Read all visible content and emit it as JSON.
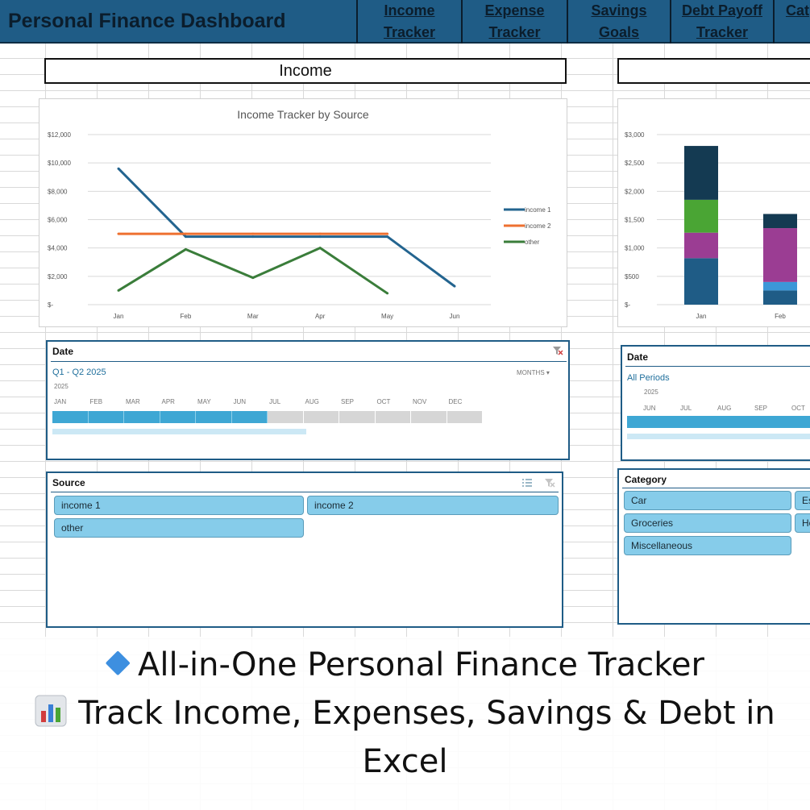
{
  "header": {
    "title": "Personal Finance Dashboard",
    "nav": [
      {
        "label": "Income\nTracker"
      },
      {
        "label": "Expense\nTracker"
      },
      {
        "label": "Savings\nGoals"
      },
      {
        "label": "Debt Payoff\nTracker"
      },
      {
        "label": "Cat"
      }
    ]
  },
  "income_section": {
    "title": "Income"
  },
  "expense_section": {
    "title": ""
  },
  "income_chart": {
    "chart_data": {
      "type": "line",
      "title": "Income Tracker by Source",
      "categories": [
        "Jan",
        "Feb",
        "Mar",
        "Apr",
        "May",
        "Jun"
      ],
      "y_ticks": [
        "$12,000",
        "$10,000",
        "$8,000",
        "$6,000",
        "$4,000",
        "$2,000",
        "$-"
      ],
      "ylim": [
        0,
        12000
      ],
      "series": [
        {
          "name": "income 1",
          "color": "#23648f",
          "values": [
            9600,
            4800,
            4800,
            4800,
            4800,
            1300
          ]
        },
        {
          "name": "income 2",
          "color": "#ee7030",
          "values": [
            5000,
            5000,
            5000,
            5000,
            5000,
            null
          ]
        },
        {
          "name": "other",
          "color": "#3a7d3a",
          "values": [
            1000,
            3900,
            1900,
            4000,
            800,
            null
          ]
        }
      ],
      "legend": "right",
      "grid": true
    }
  },
  "expense_chart": {
    "chart_data": {
      "type": "bar",
      "stacked": true,
      "categories": [
        "Jan",
        "Feb"
      ],
      "y_ticks": [
        "$3,000",
        "$2,500",
        "$2,000",
        "$1,500",
        "$1,000",
        "$500",
        "$-"
      ],
      "ylim": [
        0,
        3000
      ],
      "series": [
        {
          "color": "#1f5c86",
          "values": [
            820,
            250
          ]
        },
        {
          "color": "#3c97d8",
          "values": [
            0,
            150
          ]
        },
        {
          "color": "#9b3d93",
          "values": [
            450,
            950
          ]
        },
        {
          "color": "#4aa534",
          "values": [
            580,
            0
          ]
        },
        {
          "color": "#143a52",
          "values": [
            950,
            250
          ]
        }
      ],
      "grid": true
    }
  },
  "income_date_slicer": {
    "header": "Date",
    "selection": "Q1 - Q2 2025",
    "level": "MONTHS",
    "year": "2025",
    "months": [
      "JAN",
      "FEB",
      "MAR",
      "APR",
      "MAY",
      "JUN",
      "JUL",
      "AUG",
      "SEP",
      "OCT",
      "NOV",
      "DEC"
    ],
    "selected_count": 6
  },
  "expense_date_slicer": {
    "header": "Date",
    "selection": "All Periods",
    "year": "2025",
    "months": [
      "JUN",
      "JUL",
      "AUG",
      "SEP",
      "OCT"
    ]
  },
  "source_slicer": {
    "header": "Source",
    "items": [
      "income 1",
      "income 2",
      "other"
    ]
  },
  "category_slicer": {
    "header": "Category",
    "items": [
      "Car",
      "Es",
      "Groceries",
      "Ho",
      "Miscellaneous"
    ]
  },
  "promo": {
    "line1": "All-in-One Personal Finance Tracker",
    "line2": "Track Income, Expenses, Savings & Debt in",
    "line3": "Excel"
  },
  "icons": [
    "diamond-icon",
    "bar-chart-icon",
    "clear-filter-icon",
    "multi-select-icon",
    "dropdown-arrow-icon"
  ]
}
